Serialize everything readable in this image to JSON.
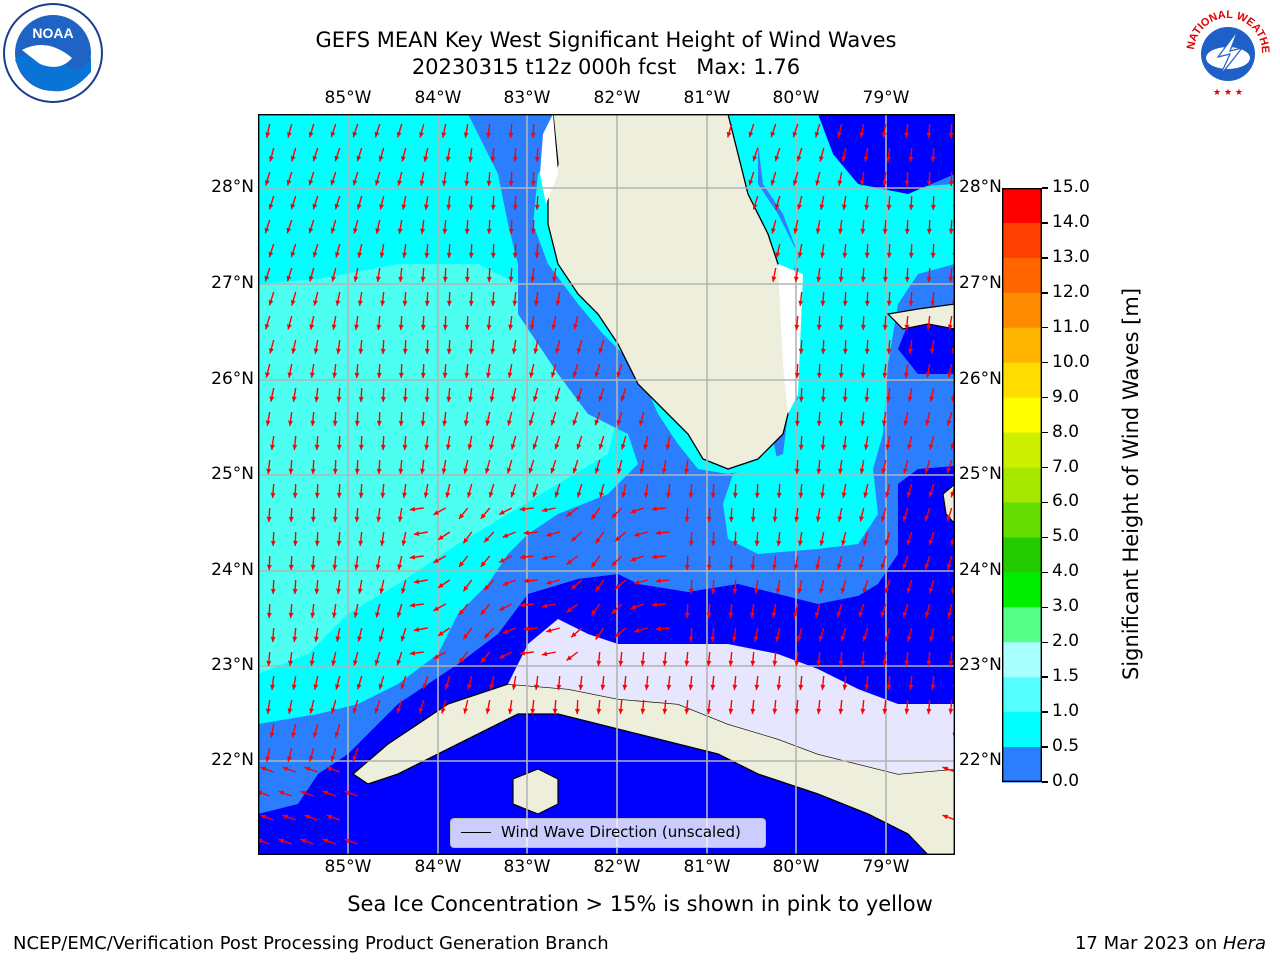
{
  "header": {
    "title_line1": "GEFS MEAN Key West Significant Height of Wind Waves",
    "title_line2": "20230315 t12z 000h fcst   Max: 1.76"
  },
  "logos": {
    "left": "noaa-logo",
    "left_text": "NOAA",
    "right": "national-weather-service-logo",
    "right_text": "NATIONAL WEATHER SERVICE"
  },
  "map": {
    "lon_labels": [
      "85°W",
      "84°W",
      "83°W",
      "82°W",
      "81°W",
      "80°W",
      "79°W"
    ],
    "lat_labels": [
      "28°N",
      "27°N",
      "26°N",
      "25°N",
      "24°N",
      "23°N",
      "22°N"
    ],
    "legend_label": "Wind Wave Direction (unscaled)",
    "colors": {
      "land": "#eeeedd",
      "level_0": "#0000ff",
      "level_05": "#2b7fff",
      "level_1": "#00ffff",
      "level_15": "#4dfff0",
      "arrow": "#ff0000"
    }
  },
  "colorbar": {
    "label": "Significant Height of Wind Waves [m]",
    "ticks": [
      "15.0",
      "14.0",
      "13.0",
      "12.0",
      "11.0",
      "10.0",
      "9.0",
      "8.0",
      "7.0",
      "6.0",
      "5.0",
      "4.0",
      "3.0",
      "2.0",
      "1.5",
      "1.0",
      "0.5",
      "0.0"
    ],
    "colors": [
      "#ff0000",
      "#ff2000",
      "#ff4000",
      "#ff6600",
      "#ff8c00",
      "#ffb400",
      "#ffdd00",
      "#ffff00",
      "#ccf000",
      "#a6e800",
      "#66dd00",
      "#22cc00",
      "#00ee00",
      "#55ff88",
      "#aaffff",
      "#55ffff",
      "#00ffff",
      "#2b7fff",
      "#0000ff"
    ]
  },
  "subtitle": "Sea Ice Concentration > 15% is shown in pink to yellow",
  "footer": {
    "left": "NCEP/EMC/Verification Post Processing Product Generation Branch",
    "right_prefix": "17 Mar 2023 on ",
    "right_host": "Hera"
  }
}
